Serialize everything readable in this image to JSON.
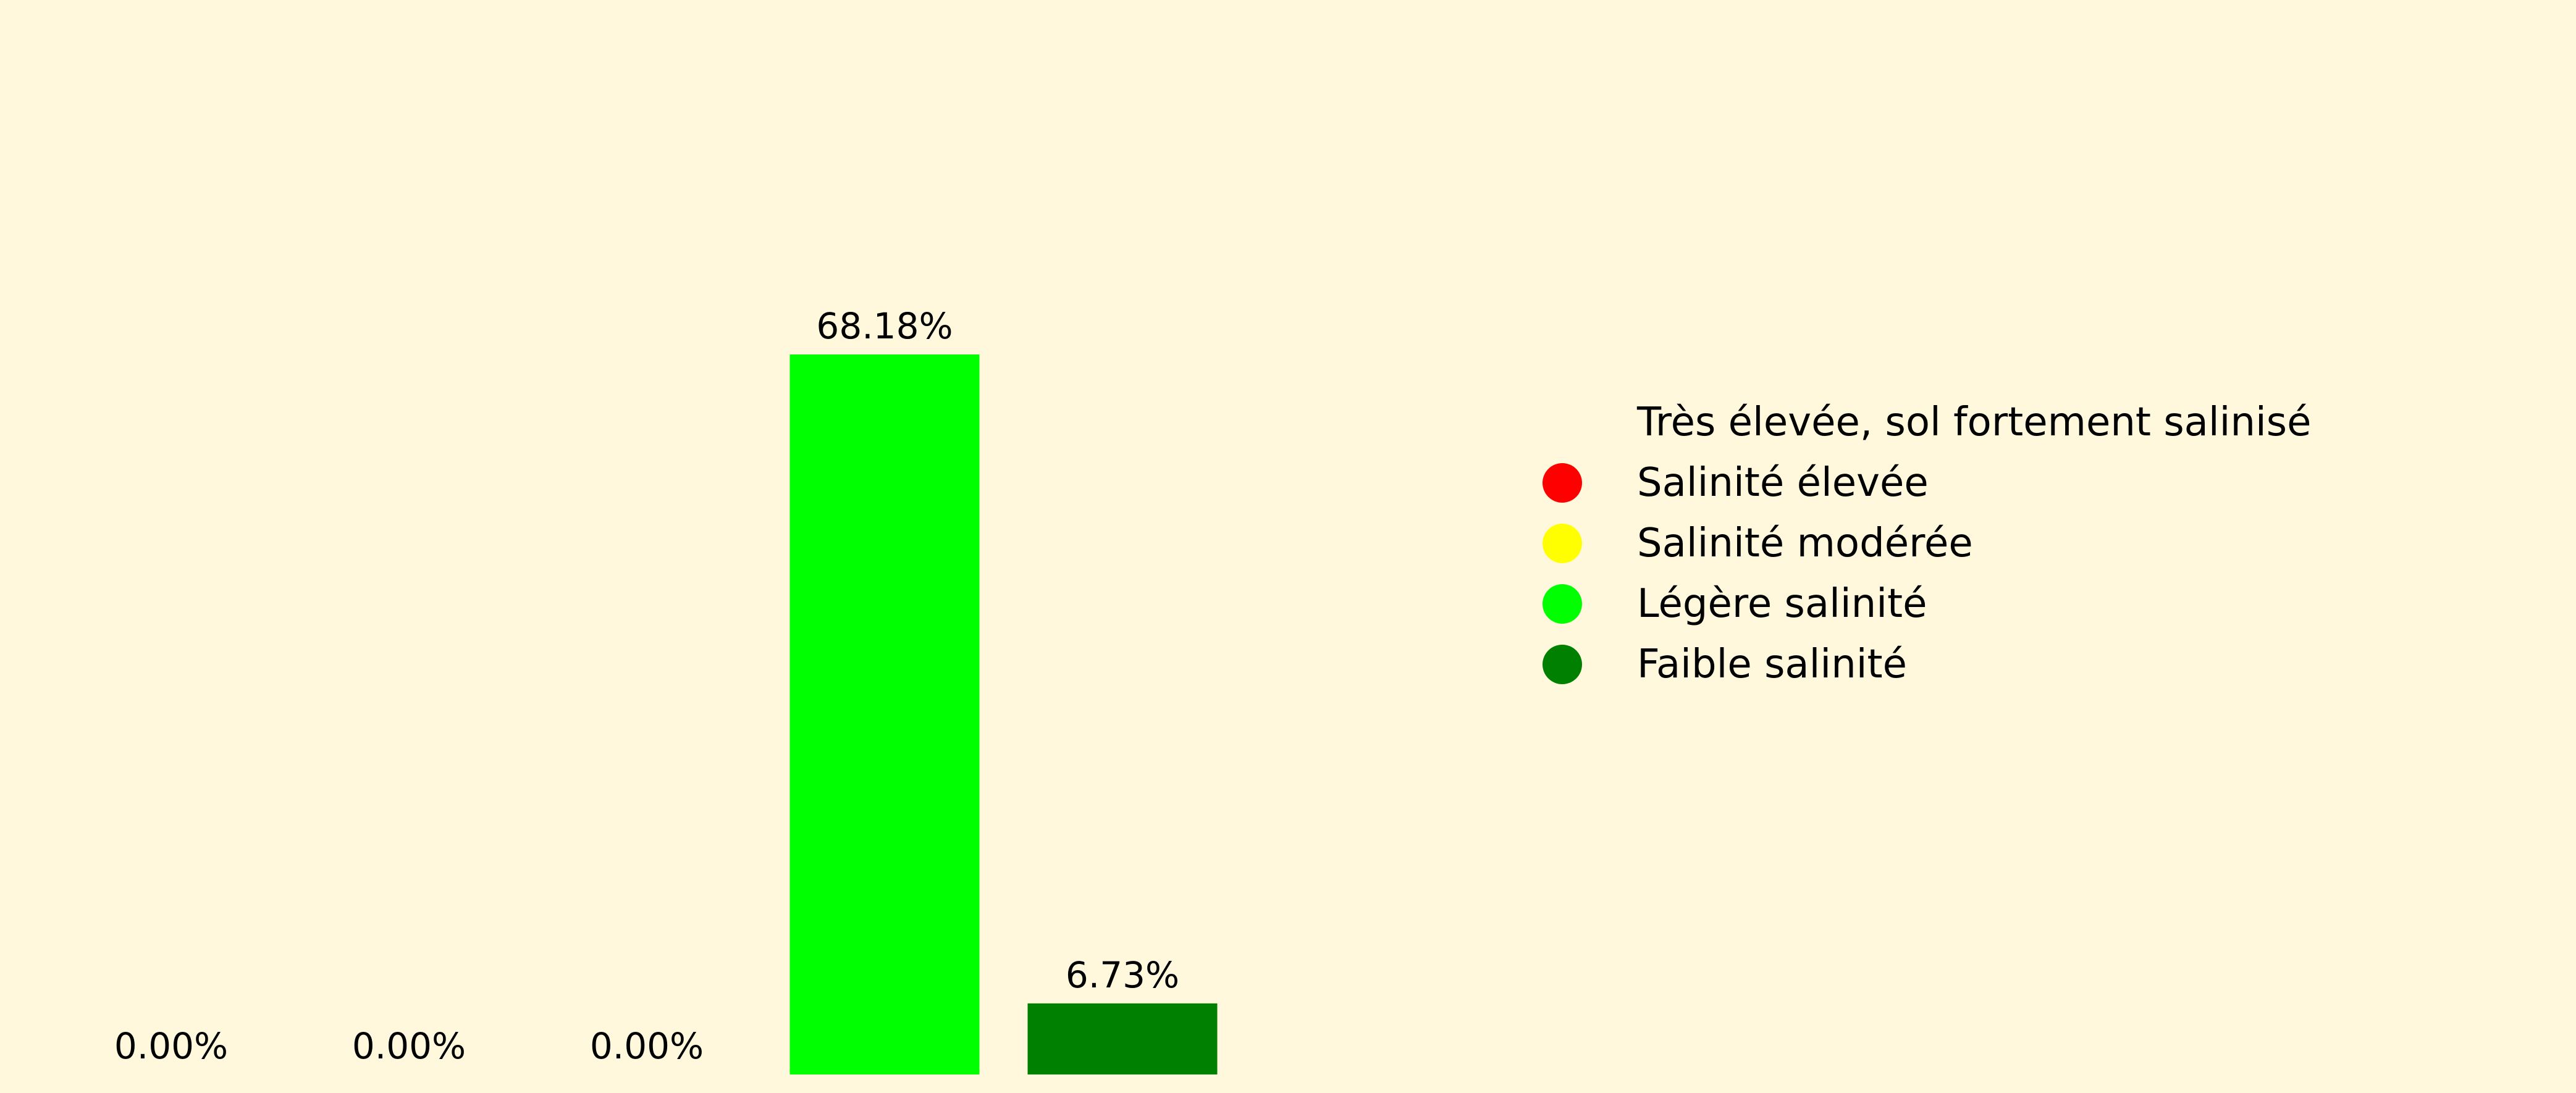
{
  "chart_data": {
    "type": "bar",
    "categories": [
      "Très élevée, sol fortement salinisé",
      "Salinité élevée",
      "Salinité modérée",
      "Légère salinité",
      "Faible salinité"
    ],
    "values": [
      0.0,
      0.0,
      0.0,
      68.18,
      6.73
    ],
    "data_labels": [
      "0.00%",
      "0.00%",
      "0.00%",
      "68.18%",
      "6.73%"
    ],
    "colors": [
      "#fff8dc",
      "#ff0000",
      "#ffff00",
      "#00ff00",
      "#008000"
    ],
    "ylim": [
      0,
      100
    ],
    "grid": false,
    "legend": {
      "placement": "right",
      "entries": [
        {
          "label": "Très élevée, sol fortement salinisé",
          "color": "#fff8dc"
        },
        {
          "label": "Salinité élevée",
          "color": "#ff0000"
        },
        {
          "label": "Salinité modérée",
          "color": "#ffff00"
        },
        {
          "label": "Légère salinité",
          "color": "#00ff00"
        },
        {
          "label": "Faible salinité",
          "color": "#008000"
        }
      ]
    }
  }
}
